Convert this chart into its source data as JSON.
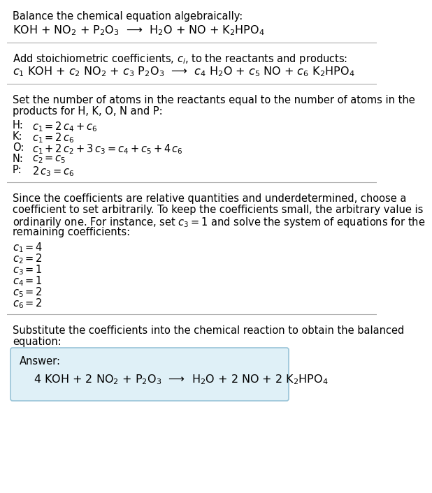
{
  "title_line": "Balance the chemical equation algebraically:",
  "equation_line": "KOH + NO$_2$ + P$_2$O$_3$  ⟶  H$_2$O + NO + K$_2$HPO$_4$",
  "section2_title": "Add stoichiometric coefficients, $c_i$, to the reactants and products:",
  "section2_eq": "$c_1$ KOH + $c_2$ NO$_2$ + $c_3$ P$_2$O$_3$  ⟶  $c_4$ H$_2$O + $c_5$ NO + $c_6$ K$_2$HPO$_4$",
  "section3_title_1": "Set the number of atoms in the reactants equal to the number of atoms in the",
  "section3_title_2": "products for H, K, O, N and P:",
  "atom_equations": [
    [
      "H:",
      "$c_1 = 2\\,c_4 + c_6$"
    ],
    [
      "K:",
      "$c_1 = 2\\,c_6$"
    ],
    [
      "O:",
      "$c_1 + 2\\,c_2 + 3\\,c_3 = c_4 + c_5 + 4\\,c_6$"
    ],
    [
      "N:",
      "$c_2 = c_5$"
    ],
    [
      "P:",
      "$2\\,c_3 = c_6$"
    ]
  ],
  "section4_text_1": "Since the coefficients are relative quantities and underdetermined, choose a",
  "section4_text_2": "coefficient to set arbitrarily. To keep the coefficients small, the arbitrary value is",
  "section4_text_3": "ordinarily one. For instance, set $c_3 = 1$ and solve the system of equations for the",
  "section4_text_4": "remaining coefficients:",
  "coeff_values": [
    "$c_1 = 4$",
    "$c_2 = 2$",
    "$c_3 = 1$",
    "$c_4 = 1$",
    "$c_5 = 2$",
    "$c_6 = 2$"
  ],
  "section5_title_1": "Substitute the coefficients into the chemical reaction to obtain the balanced",
  "section5_title_2": "equation:",
  "answer_label": "Answer:",
  "answer_eq": "4 KOH + 2 NO$_2$ + P$_2$O$_3$  ⟶  H$_2$O + 2 NO + 2 K$_2$HPO$_4$",
  "bg_color": "#ffffff",
  "text_color": "#000000",
  "answer_box_facecolor": "#dff0f7",
  "answer_box_edgecolor": "#99c4d8",
  "separator_color": "#aaaaaa",
  "font_size": 10.5,
  "eq_font_size": 11.5
}
